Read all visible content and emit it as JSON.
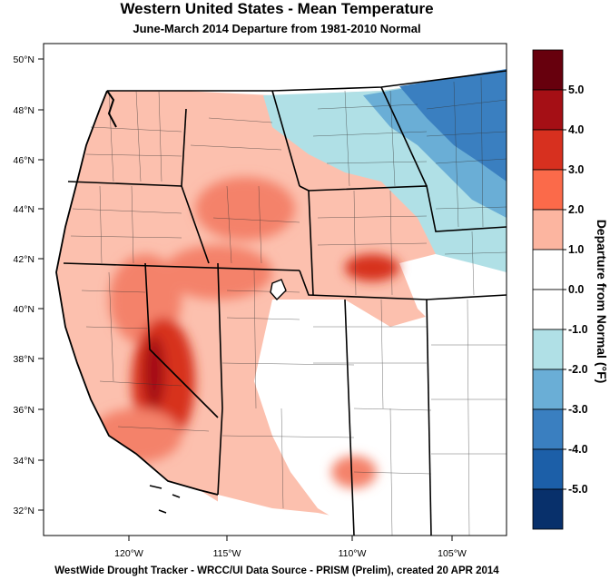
{
  "title": "Western United States - Mean Temperature",
  "subtitle": "June-March 2014  Departure from 1981-2010 Normal",
  "footer": "WestWide Drought Tracker - WRCC/UI  Data Source - PRISM (Prelim), created 20 APR 2014",
  "colorbar": {
    "title": "Departure from Normal (°F)",
    "labels": [
      "5.0",
      "4.0",
      "3.0",
      "2.0",
      "1.0",
      "0.0",
      "-1.0",
      "-2.0",
      "-3.0",
      "-4.0",
      "-5.0"
    ],
    "colors": [
      "#67000d",
      "#a50f15",
      "#d7301f",
      "#fb6a4a",
      "#fcb5a0",
      "#ffffff",
      "#ffffff",
      "#b0e0e6",
      "#6aaed6",
      "#3a7fc0",
      "#1c5fa8",
      "#08306b"
    ]
  },
  "map": {
    "lat_labels": [
      "50°N",
      "48°N",
      "46°N",
      "44°N",
      "42°N",
      "40°N",
      "38°N",
      "36°N",
      "34°N",
      "32°N"
    ],
    "lon_labels": [
      "120°W",
      "115°W",
      "110°W",
      "105°W"
    ],
    "colors": {
      "warm_light": "#fcb5a0",
      "warm_mid": "#f4826a",
      "warm_strong": "#d7301f",
      "warm_dark": "#a50f15",
      "cool_light": "#b0e0e6",
      "cool_mid": "#6aaed6",
      "cool_strong": "#3a7fc0"
    }
  }
}
